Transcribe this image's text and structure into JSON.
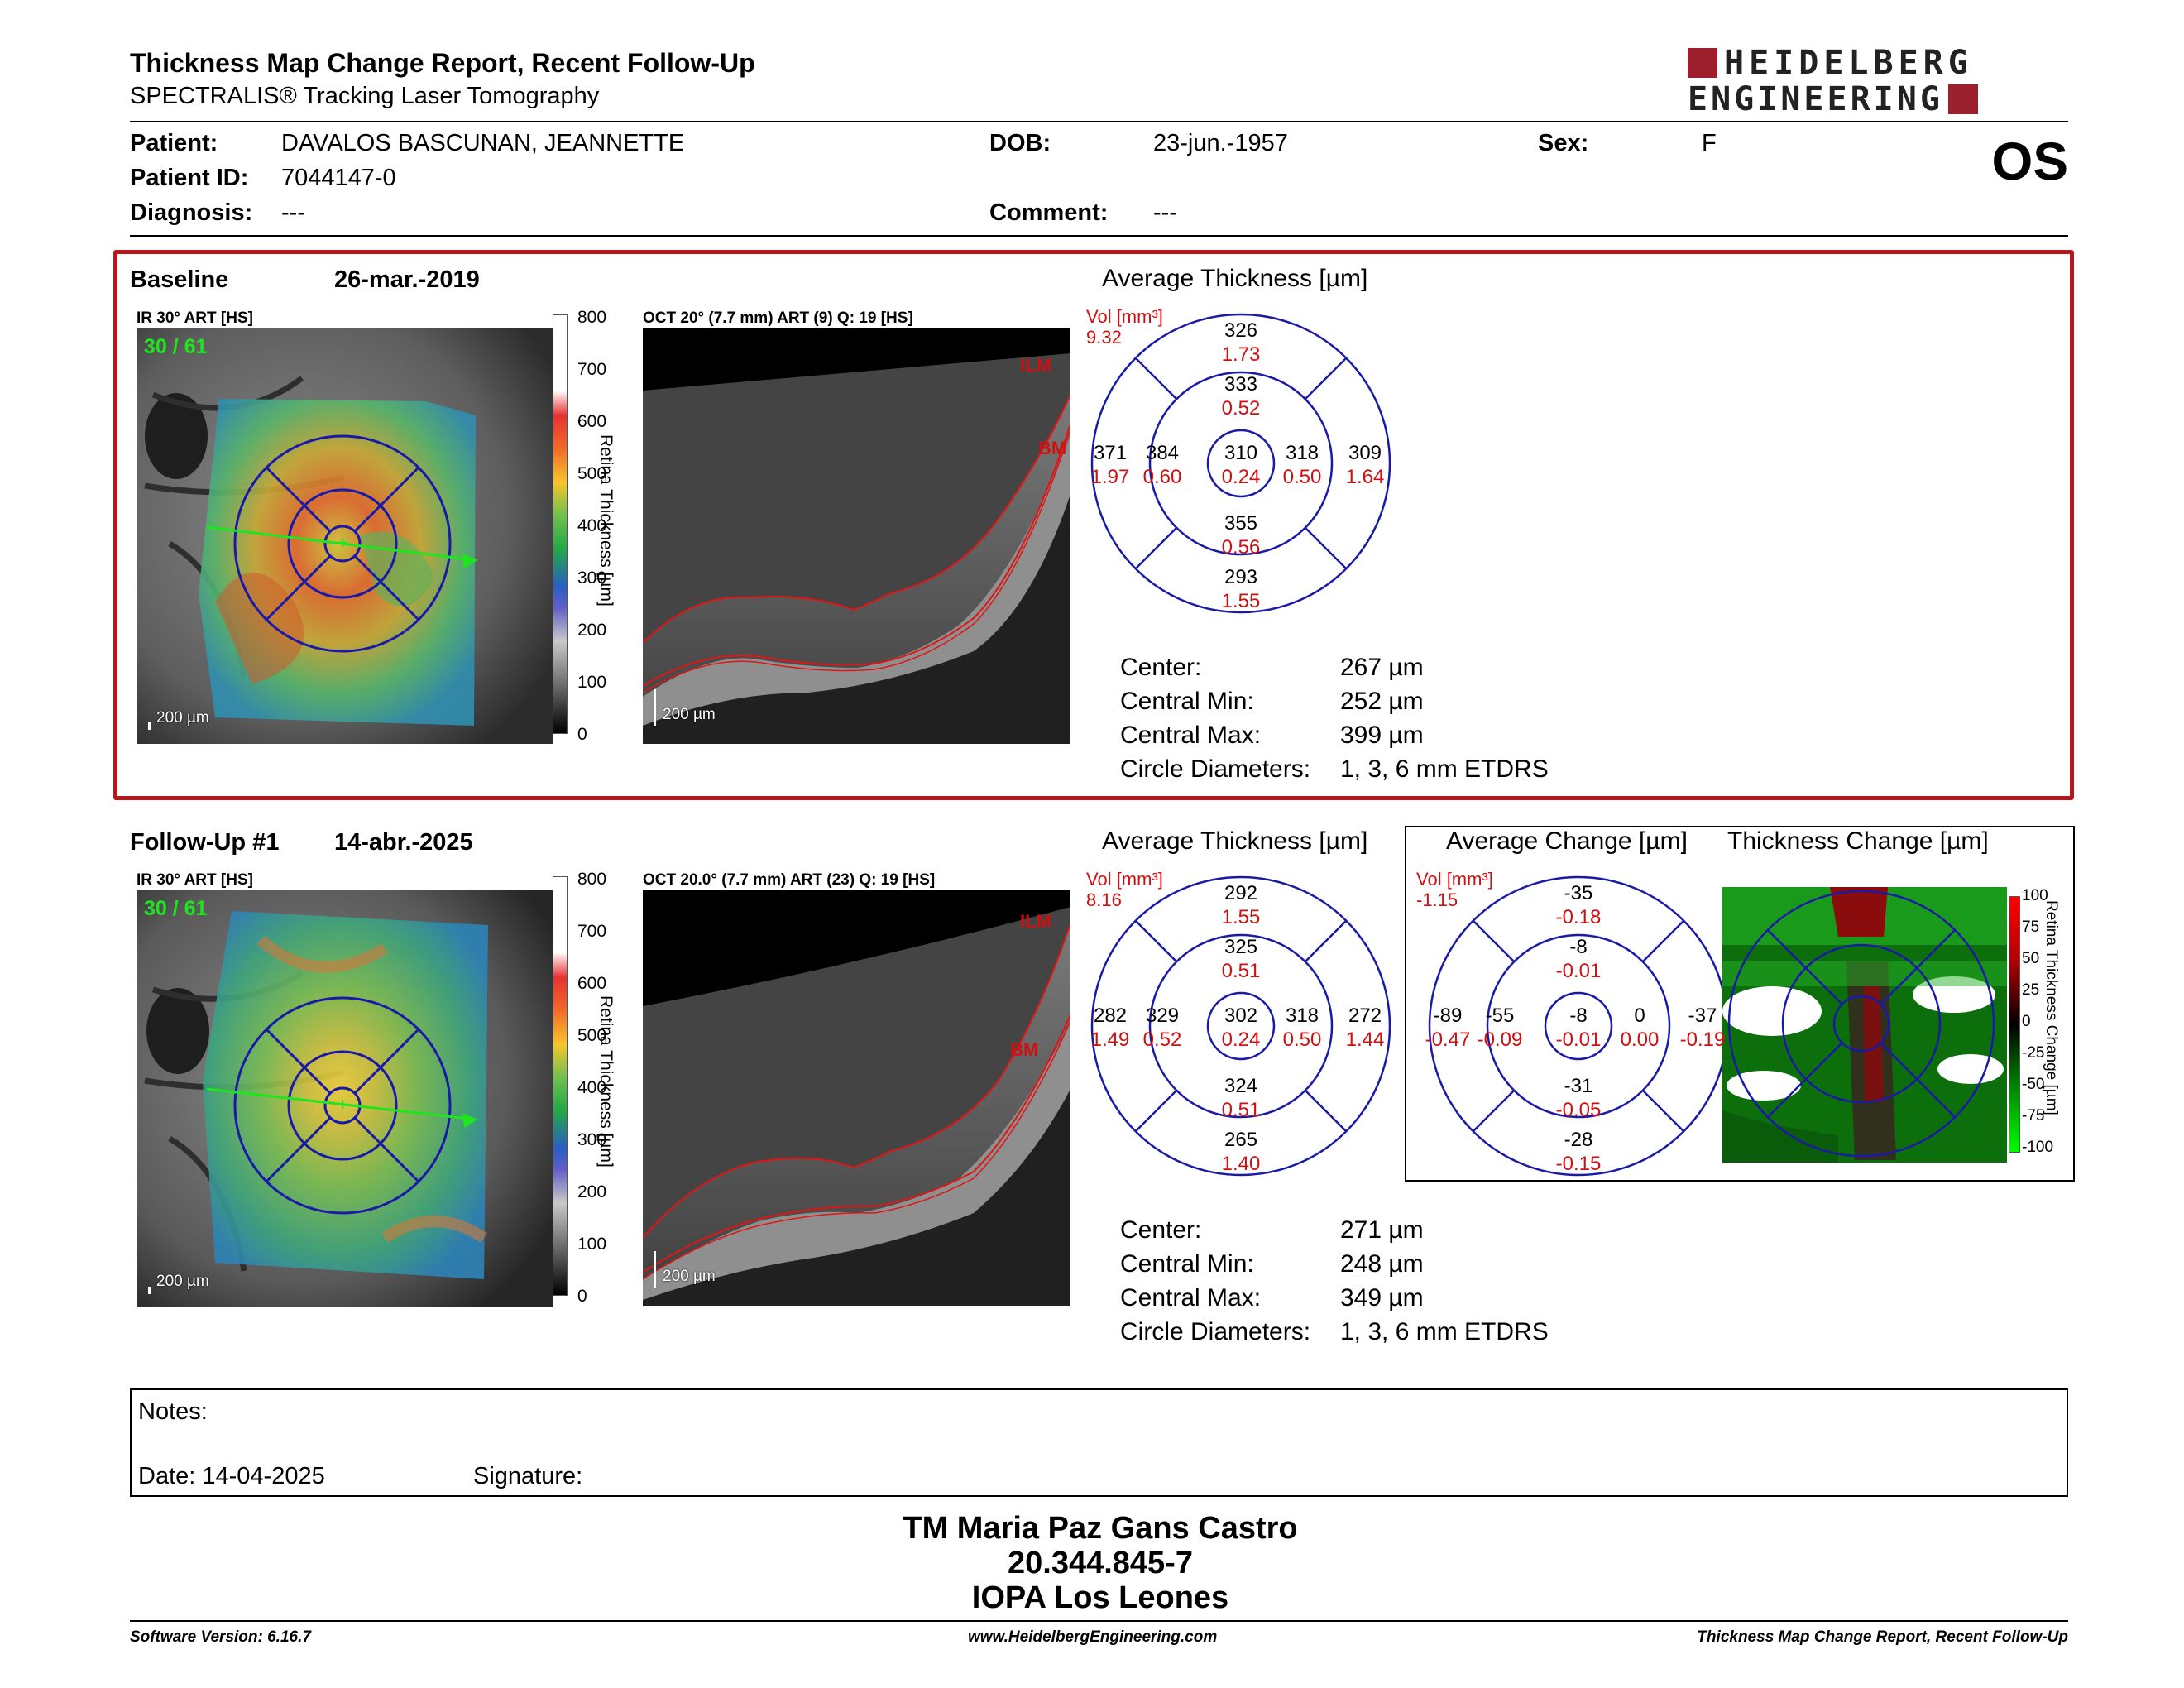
{
  "header": {
    "title": "Thickness Map Change Report, Recent Follow-Up",
    "subtitle": "SPECTRALIS® Tracking Laser Tomography",
    "logo_line1": "HEIDELBERG",
    "logo_line2": "ENGINEERING",
    "eye": "OS"
  },
  "patient": {
    "patient_label": "Patient:",
    "patient_value": "DAVALOS BASCUNAN, JEANNETTE",
    "id_label": "Patient ID:",
    "id_value": "7044147-0",
    "diag_label": "Diagnosis:",
    "diag_value": "---",
    "dob_label": "DOB:",
    "dob_value": "23-jun.-1957",
    "comment_label": "Comment:",
    "comment_value": "---",
    "sex_label": "Sex:",
    "sex_value": "F"
  },
  "colors": {
    "accent_red": "#b8161d",
    "brand": "#9c1f2e",
    "grid_blue": "#1a1aa8",
    "vol_red": "#d01010"
  },
  "baseline": {
    "label": "Baseline",
    "date": "26-mar.-2019",
    "ir_caption": "IR 30° ART [HS]",
    "ir_counter": "30 / 61",
    "ir_scale": "200 µm",
    "oct_caption": "OCT 20° (7.7 mm) ART (9) Q: 19 [HS]",
    "oct_scale": "200 µm",
    "ilm": "ILM",
    "bm": "BM",
    "cbar_ticks": [
      "800",
      "700",
      "600",
      "500",
      "400",
      "300",
      "200",
      "100",
      "0"
    ],
    "cbar_name": "Retina Thickness [µm]",
    "avg_title": "Average Thickness [µm]",
    "vol_label": "Vol [mm³]",
    "vol_total": "9.32",
    "grid": {
      "outer_sup": {
        "t": "326",
        "v": "1.73"
      },
      "inner_sup": {
        "t": "333",
        "v": "0.52"
      },
      "outer_temp": {
        "t": "371",
        "v": "1.97"
      },
      "inner_temp": {
        "t": "384",
        "v": "0.60"
      },
      "center": {
        "t": "310",
        "v": "0.24"
      },
      "inner_nas": {
        "t": "318",
        "v": "0.50"
      },
      "outer_nas": {
        "t": "309",
        "v": "1.64"
      },
      "inner_inf": {
        "t": "355",
        "v": "0.56"
      },
      "outer_inf": {
        "t": "293",
        "v": "1.55"
      }
    },
    "stats": [
      {
        "label": "Center:",
        "value": "267 µm"
      },
      {
        "label": "Central Min:",
        "value": "252 µm"
      },
      {
        "label": "Central Max:",
        "value": "399 µm"
      },
      {
        "label": "Circle Diameters:",
        "value": "1, 3, 6 mm ETDRS"
      }
    ]
  },
  "followup": {
    "label": "Follow-Up #1",
    "date": "14-abr.-2025",
    "ir_caption": "IR 30° ART [HS]",
    "ir_counter": "30 / 61",
    "ir_scale": "200 µm",
    "oct_caption": "OCT 20.0° (7.7 mm) ART (23) Q: 19 [HS]",
    "oct_scale": "200 µm",
    "ilm": "ILM",
    "bm": "BM",
    "cbar_ticks": [
      "800",
      "700",
      "600",
      "500",
      "400",
      "300",
      "200",
      "100",
      "0"
    ],
    "cbar_name": "Retina Thickness [µm]",
    "avg_title": "Average Thickness [µm]",
    "vol_label": "Vol [mm³]",
    "vol_total": "8.16",
    "grid": {
      "outer_sup": {
        "t": "292",
        "v": "1.55"
      },
      "inner_sup": {
        "t": "325",
        "v": "0.51"
      },
      "outer_temp": {
        "t": "282",
        "v": "1.49"
      },
      "inner_temp": {
        "t": "329",
        "v": "0.52"
      },
      "center": {
        "t": "302",
        "v": "0.24"
      },
      "inner_nas": {
        "t": "318",
        "v": "0.50"
      },
      "outer_nas": {
        "t": "272",
        "v": "1.44"
      },
      "inner_inf": {
        "t": "324",
        "v": "0.51"
      },
      "outer_inf": {
        "t": "265",
        "v": "1.40"
      }
    },
    "stats": [
      {
        "label": "Center:",
        "value": "271 µm"
      },
      {
        "label": "Central Min:",
        "value": "248 µm"
      },
      {
        "label": "Central Max:",
        "value": "349 µm"
      },
      {
        "label": "Circle Diameters:",
        "value": "1, 3, 6 mm ETDRS"
      }
    ],
    "change_title": "Average Change [µm]",
    "change_vol_label": "Vol [mm³]",
    "change_vol_total": "-1.15",
    "change_grid": {
      "outer_sup": {
        "t": "-35",
        "v": "-0.18"
      },
      "inner_sup": {
        "t": "-8",
        "v": "-0.01"
      },
      "outer_temp": {
        "t": "-89",
        "v": "-0.47"
      },
      "inner_temp": {
        "t": "-55",
        "v": "-0.09"
      },
      "center": {
        "t": "-8",
        "v": "-0.01"
      },
      "inner_nas": {
        "t": "0",
        "v": "0.00"
      },
      "outer_nas": {
        "t": "-37",
        "v": "-0.19"
      },
      "inner_inf": {
        "t": "-31",
        "v": "-0.05"
      },
      "outer_inf": {
        "t": "-28",
        "v": "-0.15"
      }
    },
    "map_title": "Thickness Change [µm]",
    "change_ticks": [
      "100",
      "75",
      "50",
      "25",
      "0",
      "-25",
      "-50",
      "-75",
      "-100"
    ],
    "change_cbar_name": "Retina Thickness Change [µm]"
  },
  "notes": {
    "label": "Notes:",
    "date_label": "Date: 14-04-2025",
    "signature_label": "Signature:"
  },
  "signature": {
    "name": "TM Maria Paz Gans Castro",
    "rut": "20.344.845-7",
    "institution": "IOPA Los Leones"
  },
  "footer": {
    "left": "Software Version: 6.16.7",
    "center": "www.HeidelbergEngineering.com",
    "right": "Thickness Map Change Report, Recent Follow-Up"
  }
}
